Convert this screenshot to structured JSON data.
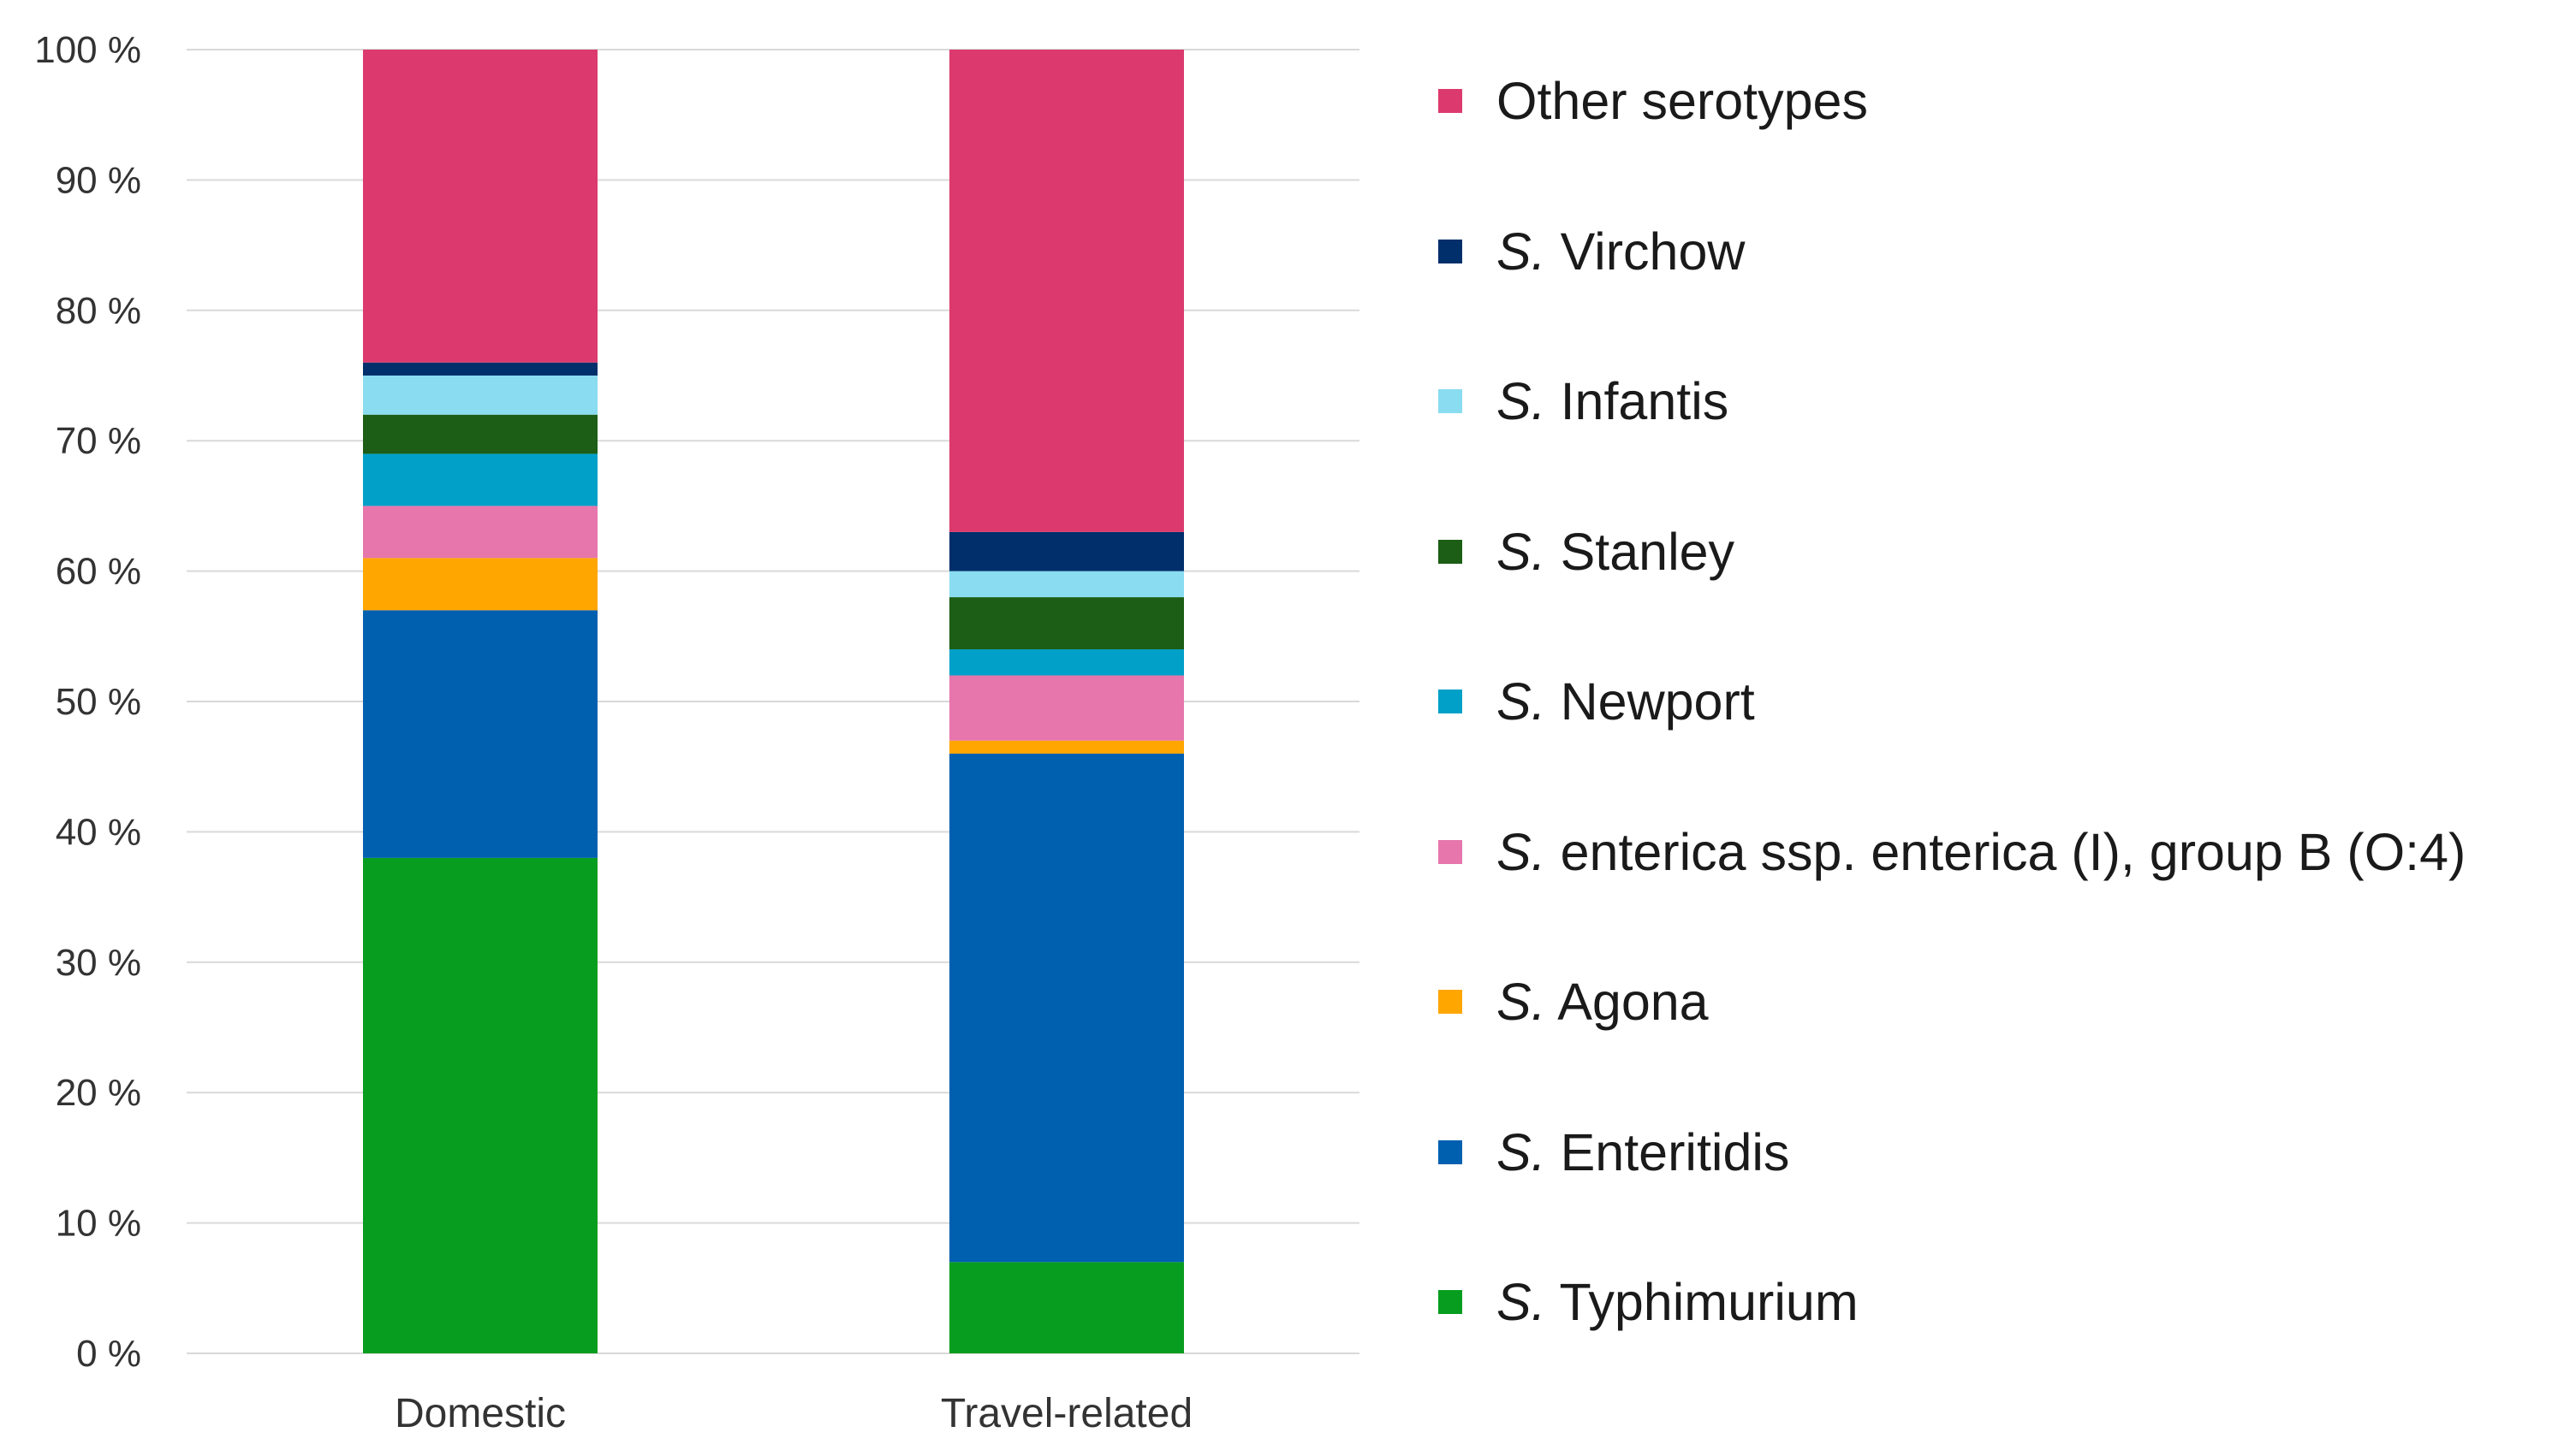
{
  "chart_data": {
    "type": "bar",
    "stacked": true,
    "title": "",
    "xlabel": "",
    "ylabel": "",
    "ylim": [
      0,
      100
    ],
    "yticks": [
      0,
      10,
      20,
      30,
      40,
      50,
      60,
      70,
      80,
      90,
      100
    ],
    "ytick_labels": [
      "0 %",
      "10 %",
      "20 %",
      "30 %",
      "40 %",
      "50 %",
      "60 %",
      "70 %",
      "80 %",
      "90 %",
      "100 %"
    ],
    "grid": true,
    "legend_position": "right",
    "categories": [
      "Domestic",
      "Travel-related"
    ],
    "series": [
      {
        "name": "S. Typhimurium",
        "prefix": "S.",
        "label": " Typhimurium",
        "color": "#079d1f",
        "values": [
          38,
          7
        ]
      },
      {
        "name": "S. Enteritidis",
        "prefix": "S.",
        "label": " Enteritidis",
        "color": "#0060b0",
        "values": [
          19,
          39
        ]
      },
      {
        "name": "S. Agona",
        "prefix": "S.",
        "label": " Agona",
        "color": "#ffa600",
        "values": [
          4,
          1
        ]
      },
      {
        "name": "S. enterica ssp. enterica (I), group B (O:4)",
        "prefix": "S.",
        "label": " enterica ssp. enterica (I), group B (O:4)",
        "color": "#e676ac",
        "values": [
          4,
          5
        ]
      },
      {
        "name": "S. Newport",
        "prefix": "S.",
        "label": " Newport",
        "color": "#00a0c8",
        "values": [
          4,
          2
        ]
      },
      {
        "name": "S. Stanley",
        "prefix": "S.",
        "label": " Stanley",
        "color": "#1c5e15",
        "values": [
          3,
          4
        ]
      },
      {
        "name": "S. Infantis",
        "prefix": "S.",
        "label": " Infantis",
        "color": "#8adcf0",
        "values": [
          3,
          2
        ]
      },
      {
        "name": "S. Virchow",
        "prefix": "S.",
        "label": " Virchow",
        "color": "#002f6b",
        "values": [
          1,
          3
        ]
      },
      {
        "name": "Other serotypes",
        "prefix": "",
        "label": "Other serotypes",
        "color": "#dc3a6e",
        "values": [
          24,
          37
        ]
      }
    ]
  }
}
